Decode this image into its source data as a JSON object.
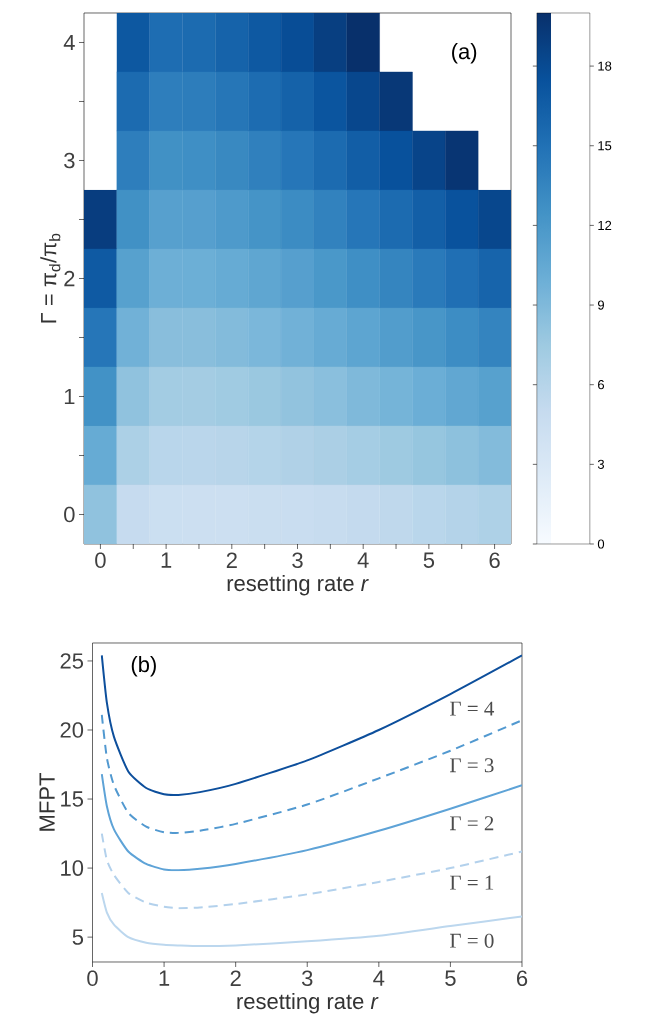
{
  "chart_data": [
    {
      "type": "heatmap",
      "xlabel": "resetting rate *r*",
      "ylabel": "Γ = π$_{d}$/π$_{b}$",
      "annotations": [
        "(a)"
      ],
      "categories": [
        "0",
        null,
        "1",
        null,
        "2",
        null,
        "3",
        null,
        "4",
        null,
        "5",
        null,
        "6"
      ],
      "y_categories": [
        "4",
        null,
        "3",
        null,
        "2",
        null,
        "1",
        null,
        "0"
      ],
      "clim": [
        0,
        20
      ],
      "cticks": [
        0,
        3,
        6,
        9,
        12,
        15,
        18
      ],
      "cells": [
        [
          null,
          17,
          15.35,
          15.5,
          16.1,
          16.9,
          17.8,
          18.9,
          20.0,
          null,
          null,
          null,
          null
        ],
        [
          null,
          15.5,
          14.0,
          14.1,
          14.65,
          15.4,
          16.2,
          17.2,
          18.25,
          19.4,
          null,
          null,
          null
        ],
        [
          null,
          14,
          12.6,
          12.7,
          13.2,
          13.85,
          14.6,
          15.5,
          16.5,
          17.5,
          18.5,
          19.6,
          null
        ],
        [
          19,
          12.6,
          11.25,
          11.3,
          11.75,
          12.3,
          12.95,
          13.75,
          14.6,
          15.5,
          16.4,
          17.4,
          18.3
        ],
        [
          16.8,
          11.2,
          9.9,
          9.95,
          10.3,
          10.75,
          11.3,
          12.0,
          12.7,
          13.5,
          14.3,
          15.15,
          16.0
        ],
        [
          14.6,
          9.7,
          8.55,
          8.55,
          8.85,
          9.2,
          9.7,
          10.25,
          10.85,
          11.5,
          12.15,
          12.85,
          13.6
        ],
        [
          12.5,
          8.2,
          7.2,
          7.15,
          7.4,
          7.7,
          8.1,
          8.5,
          9.0,
          9.5,
          10.0,
          10.6,
          11.2
        ],
        [
          10.3,
          6.6,
          5.8,
          5.75,
          5.9,
          6.1,
          6.4,
          6.7,
          7.05,
          7.5,
          7.9,
          8.35,
          8.85
        ],
        [
          8.2,
          5.0,
          4.45,
          4.35,
          4.4,
          4.55,
          4.7,
          4.9,
          5.1,
          5.45,
          5.8,
          6.15,
          6.5
        ]
      ]
    },
    {
      "type": "line",
      "xlabel": "resetting rate *r*",
      "ylabel": "MFPT",
      "annotations": [
        "(b)"
      ],
      "xlim": [
        0,
        6
      ],
      "xticks": [
        0,
        1,
        2,
        3,
        4,
        5,
        6
      ],
      "ylim": [
        3.2,
        26.3
      ],
      "yticks": [
        5,
        10,
        15,
        20,
        25
      ],
      "x": [
        0.13,
        0.2,
        0.3,
        0.5,
        0.75,
        1,
        1.2,
        1.5,
        2,
        3,
        4,
        5,
        6
      ],
      "series": [
        {
          "name": "Γ = 4",
          "color": "#0d4f9c",
          "line_style": "solid",
          "values": [
            25.4,
            22,
            19.5,
            17,
            15.8,
            15.35,
            15.3,
            15.5,
            16.1,
            17.8,
            20.0,
            22.6,
            25.4
          ]
        },
        {
          "name": "Γ = 3",
          "color": "#5299d0",
          "line_style": "dashed",
          "values": [
            21.1,
            18,
            16,
            14,
            13,
            12.6,
            12.55,
            12.7,
            13.2,
            14.6,
            16.5,
            18.5,
            20.7
          ]
        },
        {
          "name": "Γ = 2",
          "color": "#5ea3d7",
          "line_style": "solid",
          "values": [
            16.8,
            14.5,
            12.8,
            11.2,
            10.3,
            9.9,
            9.85,
            9.95,
            10.3,
            11.3,
            12.7,
            14.3,
            16.0
          ]
        },
        {
          "name": "Γ = 1",
          "color": "#b3d1ec",
          "line_style": "dashed",
          "values": [
            12.5,
            10.6,
            9.5,
            8.2,
            7.5,
            7.2,
            7.1,
            7.15,
            7.4,
            8.1,
            9.0,
            10.0,
            11.2
          ]
        },
        {
          "name": "Γ = 0",
          "color": "#bcd7ee",
          "line_style": "solid",
          "values": [
            8.2,
            6.8,
            5.9,
            5.0,
            4.6,
            4.45,
            4.4,
            4.35,
            4.4,
            4.7,
            5.1,
            5.8,
            6.5
          ]
        }
      ]
    }
  ]
}
